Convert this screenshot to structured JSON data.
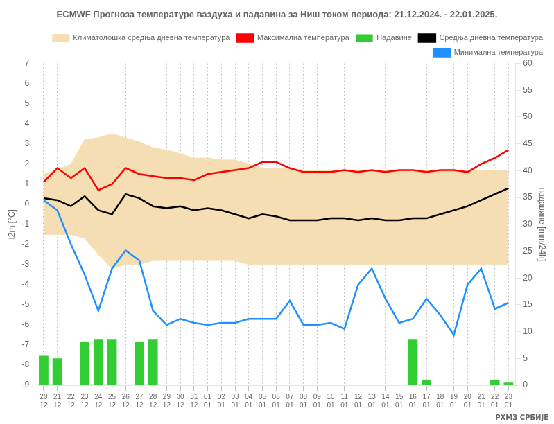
{
  "chart_data": {
    "type": "line",
    "title": "ECMWF Прогноза температуре ваздуха и падавина за Ниш током периода: 21.12.2024. - 22.01.2025.",
    "ylabel": "t2m [°C]",
    "y2label": "падавине [mm/24h]",
    "annotation": "РХМЗ СРБИЈЕ",
    "categories": [
      [
        "20",
        "12"
      ],
      [
        "21",
        "12"
      ],
      [
        "22",
        "12"
      ],
      [
        "23",
        "12"
      ],
      [
        "24",
        "12"
      ],
      [
        "25",
        "12"
      ],
      [
        "26",
        "12"
      ],
      [
        "27",
        "12"
      ],
      [
        "28",
        "12"
      ],
      [
        "29",
        "12"
      ],
      [
        "30",
        "12"
      ],
      [
        "31",
        "12"
      ],
      [
        "01",
        "01"
      ],
      [
        "02",
        "01"
      ],
      [
        "03",
        "01"
      ],
      [
        "04",
        "01"
      ],
      [
        "05",
        "01"
      ],
      [
        "06",
        "01"
      ],
      [
        "07",
        "01"
      ],
      [
        "08",
        "01"
      ],
      [
        "09",
        "01"
      ],
      [
        "10",
        "01"
      ],
      [
        "11",
        "01"
      ],
      [
        "12",
        "01"
      ],
      [
        "13",
        "01"
      ],
      [
        "14",
        "01"
      ],
      [
        "15",
        "01"
      ],
      [
        "16",
        "01"
      ],
      [
        "17",
        "01"
      ],
      [
        "18",
        "01"
      ],
      [
        "19",
        "01"
      ],
      [
        "20",
        "01"
      ],
      [
        "21",
        "01"
      ],
      [
        "22",
        "01"
      ],
      [
        "23",
        "01"
      ]
    ],
    "series": [
      {
        "name": "Климатолошка средња дневна температура",
        "type": "band",
        "color": "#f5deb3",
        "lower": [
          -1.5,
          -1.5,
          -1.5,
          -1.7,
          -2.5,
          -3.2,
          -3.0,
          -3.0,
          -2.8,
          -2.8,
          -2.8,
          -2.8,
          -2.8,
          -2.8,
          -2.8,
          -3.0,
          -3.0,
          -3.0,
          -3.0,
          -3.0,
          -3.0,
          -3.0,
          -3.0,
          -3.0,
          -3.0,
          -3.0,
          -3.0,
          -3.0,
          -3.0,
          -3.0,
          -3.0,
          -3.0,
          -3.0,
          -3.0,
          -3.0
        ],
        "upper": [
          1.5,
          1.7,
          2.0,
          3.2,
          3.3,
          3.5,
          3.3,
          3.1,
          2.8,
          2.7,
          2.5,
          2.3,
          2.3,
          2.2,
          2.2,
          2.0,
          1.8,
          1.8,
          1.8,
          1.7,
          1.7,
          1.7,
          1.7,
          1.7,
          1.7,
          1.7,
          1.7,
          1.7,
          1.7,
          1.7,
          1.7,
          1.7,
          1.7,
          1.7,
          1.7
        ]
      },
      {
        "name": "Максимална температура",
        "type": "line",
        "color": "#ff0000",
        "values": [
          1.1,
          1.8,
          1.3,
          1.8,
          0.7,
          1.0,
          1.8,
          1.5,
          1.4,
          1.3,
          1.3,
          1.2,
          1.5,
          1.6,
          1.7,
          1.8,
          2.1,
          2.1,
          1.8,
          1.6,
          1.6,
          1.6,
          1.7,
          1.6,
          1.7,
          1.6,
          1.7,
          1.7,
          1.6,
          1.7,
          1.7,
          1.6,
          2.0,
          2.3,
          2.7
        ]
      },
      {
        "name": "Падавине",
        "type": "bar",
        "axis": "y2",
        "color": "#32cd32",
        "values": [
          5.5,
          5.0,
          0.0,
          8.0,
          8.5,
          8.5,
          0.0,
          8.0,
          8.5,
          0.0,
          0.0,
          0.0,
          0.0,
          0.0,
          0.0,
          0.0,
          0.0,
          0.0,
          0.0,
          0.0,
          0.0,
          0.0,
          0.0,
          0.0,
          0.0,
          0.0,
          0.0,
          8.5,
          1.0,
          0.0,
          0.0,
          0.0,
          0.0,
          1.0,
          0.5
        ]
      },
      {
        "name": "Средња дневна температура",
        "type": "line",
        "color": "#000000",
        "values": [
          0.3,
          0.2,
          -0.1,
          0.4,
          -0.3,
          -0.5,
          0.5,
          0.3,
          -0.1,
          -0.2,
          -0.1,
          -0.3,
          -0.2,
          -0.3,
          -0.5,
          -0.7,
          -0.5,
          -0.6,
          -0.8,
          -0.8,
          -0.8,
          -0.7,
          -0.7,
          -0.8,
          -0.7,
          -0.8,
          -0.8,
          -0.7,
          -0.7,
          -0.5,
          -0.3,
          -0.1,
          0.2,
          0.5,
          0.8
        ]
      },
      {
        "name": "Минимална температура",
        "type": "line",
        "color": "#1e90ff",
        "values": [
          0.2,
          -0.3,
          -2.0,
          -3.5,
          -5.3,
          -3.2,
          -2.3,
          -2.8,
          -5.3,
          -6.0,
          -5.7,
          -5.9,
          -6.0,
          -5.9,
          -5.9,
          -5.7,
          -5.7,
          -5.7,
          -4.8,
          -6.0,
          -6.0,
          -5.9,
          -6.2,
          -4.0,
          -3.2,
          -4.7,
          -5.9,
          -5.7,
          -4.7,
          -5.5,
          -6.5,
          -4.0,
          -3.2,
          -5.2,
          -4.9
        ]
      }
    ],
    "ylim": [
      -9,
      7
    ],
    "yticks": [
      -9,
      -8,
      -7,
      -6,
      -5,
      -4,
      -3,
      -2,
      -1,
      0,
      1,
      2,
      3,
      4,
      5,
      6,
      7
    ],
    "y2lim": [
      0,
      60
    ],
    "y2ticks": [
      0,
      5,
      10,
      15,
      20,
      25,
      30,
      35,
      40,
      45,
      50,
      55,
      60
    ],
    "grid": "x",
    "legend": "upper right"
  }
}
